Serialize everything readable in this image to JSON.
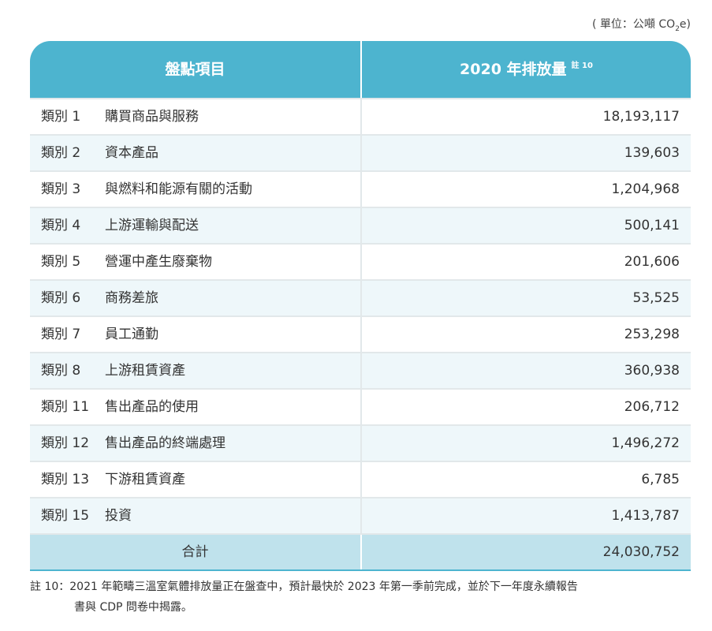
{
  "unit": {
    "before": "( 單位：公噸 CO",
    "sub": "2",
    "after": "e)"
  },
  "table": {
    "header": {
      "item": "盤點項目",
      "emission": "2020 年排放量",
      "note_ref": "註 10"
    },
    "rows": [
      [
        "類別 1",
        "購買商品與服務",
        "18,193,117"
      ],
      [
        "類別 2",
        "資本產品",
        "139,603"
      ],
      [
        "類別 3",
        "與燃料和能源有關的活動",
        "1,204,968"
      ],
      [
        "類別 4",
        "上游運輸與配送",
        "500,141"
      ],
      [
        "類別 5",
        "營運中產生廢棄物",
        "201,606"
      ],
      [
        "類別 6",
        "商務差旅",
        "53,525"
      ],
      [
        "類別 7",
        "員工通勤",
        "253,298"
      ],
      [
        "類別 8",
        "上游租賃資產",
        "360,938"
      ],
      [
        "類別 11",
        "售出產品的使用",
        "206,712"
      ],
      [
        "類別 12",
        "售出產品的終端處理",
        "1,496,272"
      ],
      [
        "類別 13",
        "下游租賃資產",
        "6,785"
      ],
      [
        "類別 15",
        "投資",
        "1,413,787"
      ]
    ],
    "total": {
      "label": "合計",
      "value": "24,030,752"
    }
  },
  "footnote": {
    "label": "註 10：",
    "lines": [
      "2021 年範疇三溫室氣體排放量正在盤查中，預計最快於 2023 年第一季前完成，並於下一年度永續報告",
      "書與 CDP 問卷中揭露。"
    ]
  }
}
